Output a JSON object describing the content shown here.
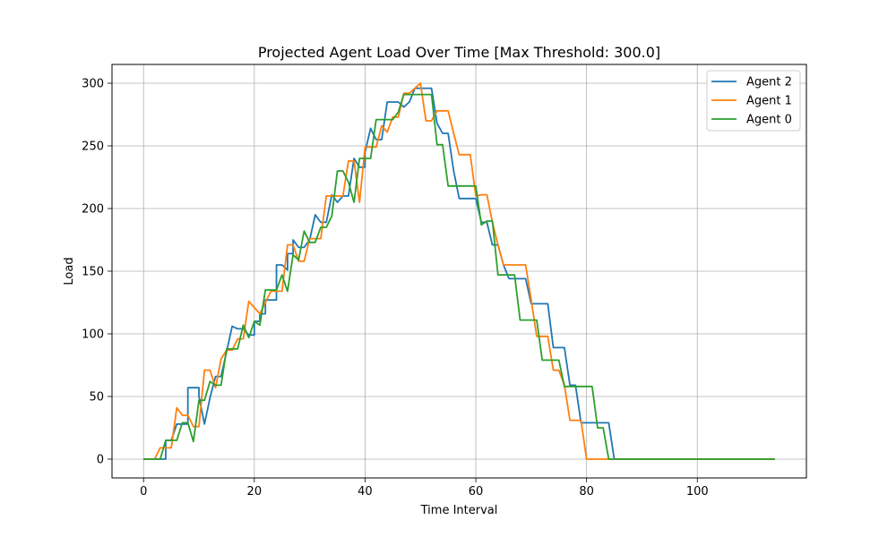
{
  "chart_data": {
    "type": "line",
    "title": "Projected Agent Load Over Time [Max Threshold: 300.0]",
    "xlabel": "Time Interval",
    "ylabel": "Load",
    "xlim": [
      -5.7,
      119.7
    ],
    "ylim": [
      -15,
      315
    ],
    "xticks": [
      0,
      20,
      40,
      60,
      80,
      100
    ],
    "yticks": [
      0,
      50,
      100,
      150,
      200,
      250,
      300
    ],
    "grid": true,
    "legend_position": "upper right",
    "series": [
      {
        "name": "Agent 2",
        "color": "#1f77b4",
        "points": [
          [
            0,
            0
          ],
          [
            3,
            0
          ],
          [
            4,
            0
          ],
          [
            4,
            15
          ],
          [
            5,
            15
          ],
          [
            6,
            28
          ],
          [
            7,
            28
          ],
          [
            8,
            28
          ],
          [
            8,
            57
          ],
          [
            9,
            57
          ],
          [
            10,
            57
          ],
          [
            10,
            50
          ],
          [
            11,
            28
          ],
          [
            12,
            49
          ],
          [
            13,
            66
          ],
          [
            14,
            66
          ],
          [
            15,
            86
          ],
          [
            16,
            106
          ],
          [
            17,
            104
          ],
          [
            18,
            104
          ],
          [
            19,
            99
          ],
          [
            20,
            99
          ],
          [
            20,
            110
          ],
          [
            21,
            110
          ],
          [
            21,
            116
          ],
          [
            22,
            116
          ],
          [
            22,
            127
          ],
          [
            23,
            127
          ],
          [
            24,
            127
          ],
          [
            24,
            155
          ],
          [
            25,
            155
          ],
          [
            26,
            151
          ],
          [
            26,
            164
          ],
          [
            27,
            164
          ],
          [
            27,
            175
          ],
          [
            28,
            169
          ],
          [
            29,
            169
          ],
          [
            30,
            175
          ],
          [
            31,
            195
          ],
          [
            32,
            189
          ],
          [
            33,
            189
          ],
          [
            34,
            211
          ],
          [
            35,
            205
          ],
          [
            36,
            210
          ],
          [
            37,
            210
          ],
          [
            38,
            240
          ],
          [
            39,
            233
          ],
          [
            40,
            233
          ],
          [
            40,
            245
          ],
          [
            41,
            264
          ],
          [
            42,
            255
          ],
          [
            43,
            255
          ],
          [
            44,
            285
          ],
          [
            45,
            285
          ],
          [
            46,
            285
          ],
          [
            47,
            281
          ],
          [
            48,
            285
          ],
          [
            49,
            296
          ],
          [
            50,
            296
          ],
          [
            51,
            296
          ],
          [
            52,
            296
          ],
          [
            53,
            268
          ],
          [
            54,
            260
          ],
          [
            55,
            260
          ],
          [
            56,
            230
          ],
          [
            57,
            208
          ],
          [
            58,
            208
          ],
          [
            59,
            208
          ],
          [
            60,
            208
          ],
          [
            61,
            189
          ],
          [
            62,
            189
          ],
          [
            63,
            171
          ],
          [
            64,
            171
          ],
          [
            65,
            155
          ],
          [
            66,
            144
          ],
          [
            67,
            144
          ],
          [
            68,
            144
          ],
          [
            69,
            144
          ],
          [
            70,
            124
          ],
          [
            71,
            124
          ],
          [
            72,
            124
          ],
          [
            73,
            124
          ],
          [
            74,
            89
          ],
          [
            75,
            89
          ],
          [
            76,
            89
          ],
          [
            77,
            59
          ],
          [
            78,
            59
          ],
          [
            79,
            29
          ],
          [
            80,
            29
          ],
          [
            81,
            29
          ],
          [
            82,
            29
          ],
          [
            83,
            29
          ],
          [
            84,
            29
          ],
          [
            85,
            0
          ],
          [
            86,
            0
          ],
          [
            90,
            0
          ],
          [
            100,
            0
          ],
          [
            110,
            0
          ],
          [
            114,
            0
          ]
        ]
      },
      {
        "name": "Agent 1",
        "color": "#ff7f0e",
        "points": [
          [
            0,
            0
          ],
          [
            2,
            0
          ],
          [
            3,
            9
          ],
          [
            4,
            9
          ],
          [
            5,
            9
          ],
          [
            6,
            41
          ],
          [
            7,
            35
          ],
          [
            8,
            35
          ],
          [
            9,
            26
          ],
          [
            10,
            26
          ],
          [
            11,
            71
          ],
          [
            12,
            71
          ],
          [
            13,
            57
          ],
          [
            14,
            80
          ],
          [
            15,
            87
          ],
          [
            16,
            87
          ],
          [
            17,
            96
          ],
          [
            18,
            96
          ],
          [
            19,
            126
          ],
          [
            20,
            121
          ],
          [
            21,
            116
          ],
          [
            22,
            125
          ],
          [
            23,
            134
          ],
          [
            24,
            134
          ],
          [
            25,
            134
          ],
          [
            26,
            171
          ],
          [
            27,
            171
          ],
          [
            28,
            158
          ],
          [
            29,
            158
          ],
          [
            30,
            176
          ],
          [
            31,
            176
          ],
          [
            32,
            176
          ],
          [
            33,
            210
          ],
          [
            34,
            210
          ],
          [
            35,
            210
          ],
          [
            36,
            210
          ],
          [
            37,
            238
          ],
          [
            38,
            238
          ],
          [
            39,
            205
          ],
          [
            40,
            249
          ],
          [
            41,
            249
          ],
          [
            42,
            249
          ],
          [
            43,
            266
          ],
          [
            44,
            261
          ],
          [
            45,
            273
          ],
          [
            46,
            273
          ],
          [
            47,
            292
          ],
          [
            48,
            292
          ],
          [
            49,
            296
          ],
          [
            50,
            300
          ],
          [
            51,
            270
          ],
          [
            52,
            270
          ],
          [
            53,
            278
          ],
          [
            54,
            278
          ],
          [
            55,
            278
          ],
          [
            56,
            260
          ],
          [
            57,
            243
          ],
          [
            58,
            243
          ],
          [
            59,
            243
          ],
          [
            60,
            210
          ],
          [
            61,
            211
          ],
          [
            62,
            211
          ],
          [
            63,
            189
          ],
          [
            64,
            171
          ],
          [
            65,
            155
          ],
          [
            66,
            155
          ],
          [
            67,
            155
          ],
          [
            68,
            155
          ],
          [
            69,
            155
          ],
          [
            70,
            127
          ],
          [
            71,
            98
          ],
          [
            72,
            98
          ],
          [
            73,
            98
          ],
          [
            74,
            71
          ],
          [
            75,
            71
          ],
          [
            76,
            59
          ],
          [
            77,
            31
          ],
          [
            78,
            31
          ],
          [
            79,
            31
          ],
          [
            80,
            0
          ],
          [
            81,
            0
          ],
          [
            85,
            0
          ],
          [
            90,
            0
          ],
          [
            100,
            0
          ],
          [
            110,
            0
          ],
          [
            114,
            0
          ]
        ]
      },
      {
        "name": "Agent 0",
        "color": "#2ca02c",
        "points": [
          [
            0,
            0
          ],
          [
            3,
            0
          ],
          [
            4,
            15
          ],
          [
            5,
            15
          ],
          [
            6,
            15
          ],
          [
            7,
            29
          ],
          [
            8,
            29
          ],
          [
            9,
            14
          ],
          [
            10,
            47
          ],
          [
            11,
            47
          ],
          [
            12,
            62
          ],
          [
            13,
            59
          ],
          [
            14,
            59
          ],
          [
            15,
            88
          ],
          [
            16,
            88
          ],
          [
            17,
            88
          ],
          [
            18,
            107
          ],
          [
            19,
            97
          ],
          [
            20,
            110
          ],
          [
            21,
            107
          ],
          [
            22,
            135
          ],
          [
            23,
            135
          ],
          [
            24,
            135
          ],
          [
            25,
            147
          ],
          [
            26,
            134
          ],
          [
            27,
            163
          ],
          [
            28,
            159
          ],
          [
            29,
            182
          ],
          [
            30,
            173
          ],
          [
            31,
            173
          ],
          [
            32,
            185
          ],
          [
            33,
            185
          ],
          [
            34,
            194
          ],
          [
            35,
            230
          ],
          [
            36,
            230
          ],
          [
            37,
            221
          ],
          [
            38,
            205
          ],
          [
            39,
            240
          ],
          [
            40,
            240
          ],
          [
            41,
            240
          ],
          [
            42,
            271
          ],
          [
            43,
            271
          ],
          [
            44,
            271
          ],
          [
            45,
            271
          ],
          [
            46,
            277
          ],
          [
            47,
            291
          ],
          [
            48,
            291
          ],
          [
            49,
            291
          ],
          [
            50,
            291
          ],
          [
            51,
            291
          ],
          [
            52,
            291
          ],
          [
            53,
            251
          ],
          [
            54,
            251
          ],
          [
            55,
            218
          ],
          [
            56,
            218
          ],
          [
            57,
            218
          ],
          [
            58,
            218
          ],
          [
            59,
            218
          ],
          [
            60,
            218
          ],
          [
            61,
            187
          ],
          [
            62,
            190
          ],
          [
            63,
            190
          ],
          [
            64,
            147
          ],
          [
            65,
            147
          ],
          [
            66,
            147
          ],
          [
            67,
            147
          ],
          [
            68,
            111
          ],
          [
            69,
            111
          ],
          [
            70,
            111
          ],
          [
            71,
            111
          ],
          [
            72,
            79
          ],
          [
            73,
            79
          ],
          [
            74,
            79
          ],
          [
            75,
            79
          ],
          [
            76,
            58
          ],
          [
            77,
            58
          ],
          [
            78,
            58
          ],
          [
            79,
            58
          ],
          [
            80,
            58
          ],
          [
            81,
            58
          ],
          [
            82,
            25
          ],
          [
            83,
            25
          ],
          [
            84,
            0
          ],
          [
            85,
            0
          ],
          [
            90,
            0
          ],
          [
            100,
            0
          ],
          [
            110,
            0
          ],
          [
            114,
            0
          ]
        ]
      }
    ]
  }
}
